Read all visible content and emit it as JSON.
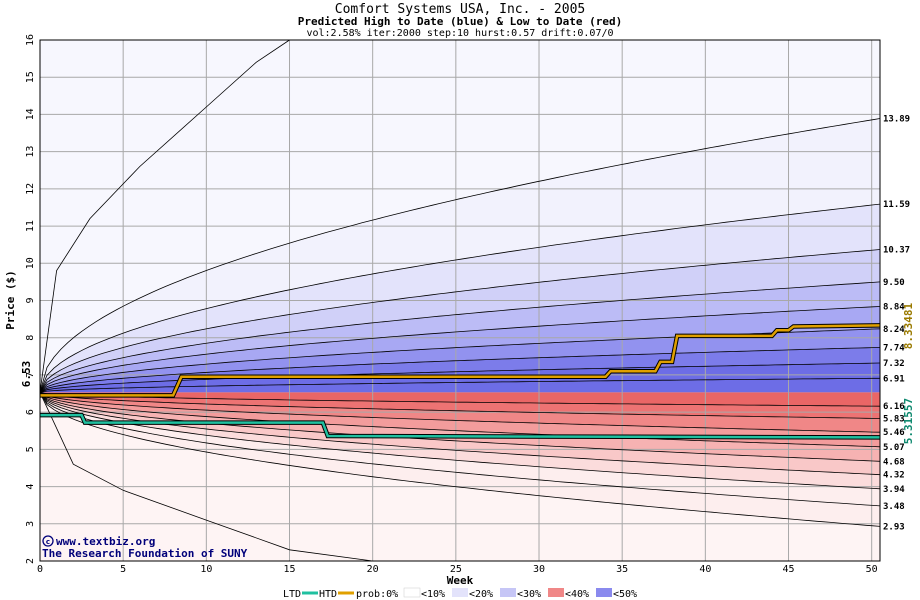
{
  "chart_data": {
    "type": "area",
    "title": "Comfort Systems USA, Inc. - 2005",
    "subtitle": "Predicted High to Date (blue) &  Low to Date (red)",
    "params": "vol:2.58% iter:2000 step:10 hurst:0.57 drift:0.07/0",
    "xlabel": "Week",
    "ylabel": "Price ($)",
    "xlim": [
      0,
      50.5
    ],
    "ylim": [
      2,
      16
    ],
    "x_ticks": [
      0,
      5,
      10,
      15,
      20,
      25,
      30,
      35,
      40,
      45,
      50
    ],
    "y_ticks": [
      2,
      3,
      4,
      5,
      6,
      7,
      8,
      9,
      10,
      11,
      12,
      13,
      14,
      15,
      16
    ],
    "grid": true,
    "start_price": 6.53,
    "start_label": "6.53",
    "high_quantile_ends": [
      13.89,
      11.59,
      10.37,
      9.5,
      8.84,
      8.24,
      7.74,
      7.32,
      6.91
    ],
    "low_quantile_ends": [
      6.16,
      5.83,
      5.46,
      5.07,
      4.68,
      4.32,
      3.94,
      3.48,
      2.93
    ],
    "high_labels": [
      "13.89",
      "11.59",
      "10.37",
      "9.50",
      "8.84",
      "8.24",
      "7.74",
      "7.32",
      "6.91"
    ],
    "low_labels": [
      "6.16",
      "5.83",
      "5.46",
      "5.07",
      "4.68",
      "4.32",
      "3.94",
      "3.48",
      "2.93"
    ],
    "envelope_high": [
      [
        0,
        6.53
      ],
      [
        1,
        9.8
      ],
      [
        3,
        11.2
      ],
      [
        6,
        12.6
      ],
      [
        10,
        14.2
      ],
      [
        13,
        15.4
      ],
      [
        15,
        16.0
      ]
    ],
    "envelope_low": [
      [
        0,
        6.53
      ],
      [
        2,
        4.6
      ],
      [
        5,
        3.9
      ],
      [
        10,
        3.1
      ],
      [
        15,
        2.3
      ],
      [
        20,
        2.0
      ]
    ],
    "htd_series": {
      "name": "HTD",
      "color": "#e0a000",
      "end_value": 8.33481,
      "end_label": "8.33481",
      "points": [
        [
          0,
          6.45
        ],
        [
          8,
          6.45
        ],
        [
          8.5,
          6.95
        ],
        [
          34,
          6.95
        ],
        [
          34.3,
          7.1
        ],
        [
          37,
          7.1
        ],
        [
          37.3,
          7.35
        ],
        [
          38,
          7.35
        ],
        [
          38.3,
          8.05
        ],
        [
          44,
          8.05
        ],
        [
          44.3,
          8.2
        ],
        [
          45,
          8.2
        ],
        [
          45.3,
          8.3
        ],
        [
          50.5,
          8.33
        ]
      ]
    },
    "ltd_series": {
      "name": "LTD",
      "color": "#20c0a0",
      "end_value": 5.31557,
      "end_label": "5.31557",
      "points": [
        [
          0,
          5.92
        ],
        [
          2.5,
          5.92
        ],
        [
          2.7,
          5.72
        ],
        [
          17,
          5.72
        ],
        [
          17.3,
          5.36
        ],
        [
          50.5,
          5.32
        ]
      ]
    },
    "legend": {
      "ltd": "LTD",
      "htd": "HTD",
      "prob_prefix": "prob:0%",
      "bins": [
        "<10%",
        "<20%",
        "<30%",
        "<40%",
        "<50%"
      ]
    },
    "colors": {
      "high_bands": [
        "#f2f2fd",
        "#e3e3fb",
        "#d0d0f8",
        "#bcbcf6",
        "#a8a8f3",
        "#9292ef",
        "#7c7cea",
        "#6d6de6"
      ],
      "low_bands": [
        "#fdeeee",
        "#fbdcdc",
        "#f9c8c8",
        "#f6b2b2",
        "#f39c9c",
        "#f08787",
        "#ed7373",
        "#ea6666"
      ]
    },
    "credits": [
      "www.textbiz.org",
      "The Research Foundation of SUNY"
    ]
  }
}
